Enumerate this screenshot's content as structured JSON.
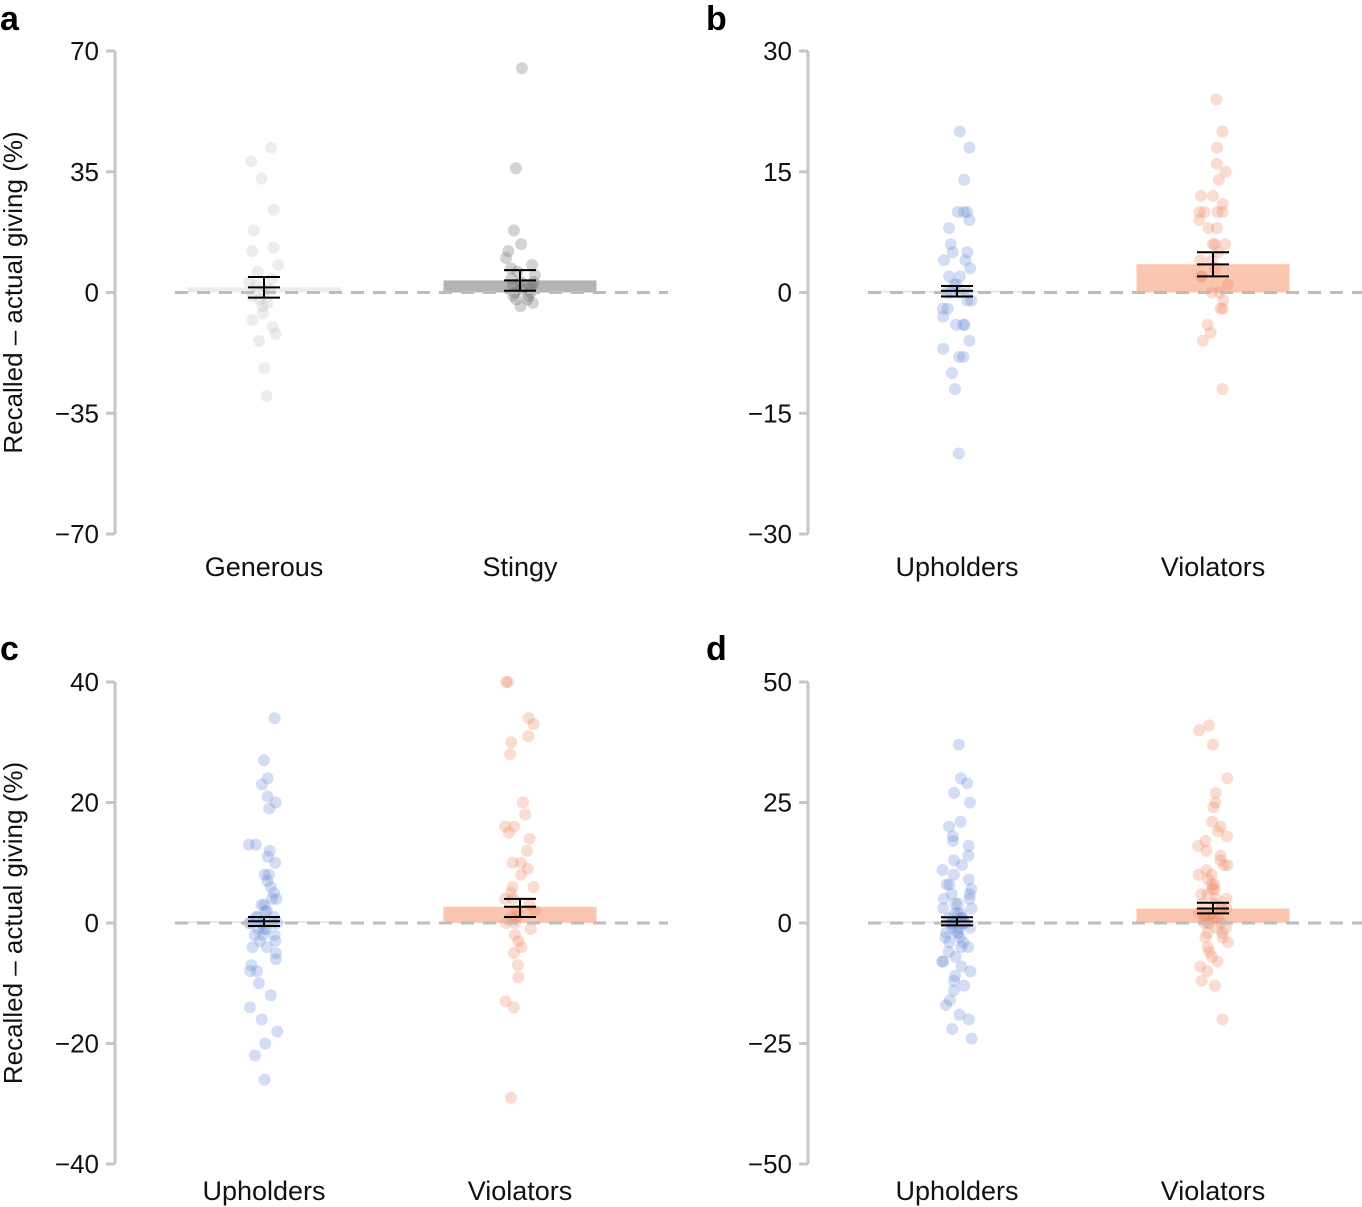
{
  "chart_data": [
    {
      "panel": "a",
      "type": "bar",
      "ylabel": "Recalled – actual giving (%)",
      "ylim": [
        -70,
        70
      ],
      "yticks": [
        70,
        35,
        0,
        -35,
        -70
      ],
      "ytick_labels": [
        "70",
        "35",
        "0",
        "−35",
        "−70"
      ],
      "categories": [
        "Generous",
        "Stingy"
      ],
      "bar_colors": [
        "#ededed",
        "#b4b4b4"
      ],
      "dot_colors": [
        "#c4c4c4",
        "#6e6e6e"
      ],
      "bars": [
        {
          "category": "Generous",
          "mean": 1.5,
          "se_low": -1.5,
          "se_high": 4.5,
          "points": [
            42,
            38,
            33,
            24,
            18,
            13,
            12,
            8,
            6,
            4,
            3,
            2,
            1,
            0,
            -1,
            -2,
            -3,
            -4,
            -6,
            -8,
            -10,
            -12,
            -14,
            -22,
            -30
          ]
        },
        {
          "category": "Stingy",
          "mean": 3.5,
          "se_low": 0.5,
          "se_high": 6.5,
          "points": [
            65,
            36,
            18,
            14,
            12,
            10,
            8,
            7,
            6,
            5,
            4,
            3,
            3,
            2,
            2,
            1,
            1,
            0,
            0,
            -1,
            -1,
            -2,
            -2,
            -3,
            -4
          ]
        }
      ]
    },
    {
      "panel": "b",
      "type": "bar",
      "ylabel": "",
      "ylim": [
        -30,
        30
      ],
      "yticks": [
        30,
        15,
        0,
        -15,
        -30
      ],
      "ytick_labels": [
        "30",
        "15",
        "0",
        "−15",
        "−30"
      ],
      "categories": [
        "Upholders",
        "Violators"
      ],
      "bar_colors": [
        "#dde6f8",
        "#fbc6b0"
      ],
      "dot_colors": [
        "#6d8fd6",
        "#ef8a66"
      ],
      "bars": [
        {
          "category": "Upholders",
          "mean": 0.2,
          "se_low": -0.5,
          "se_high": 0.8,
          "points": [
            20,
            18,
            14,
            10,
            10,
            10,
            9,
            8,
            6,
            5,
            5,
            4,
            4,
            3,
            2,
            2,
            1,
            1,
            0,
            0,
            0,
            0,
            -1,
            -1,
            -2,
            -2,
            -3,
            -4,
            -4,
            -4,
            -6,
            -7,
            -8,
            -8,
            -10,
            -12,
            -20
          ]
        },
        {
          "category": "Violators",
          "mean": 3.5,
          "se_low": 2,
          "se_high": 5,
          "points": [
            24,
            20,
            18,
            16,
            15,
            14,
            12,
            12,
            11,
            10,
            10,
            10,
            10,
            9,
            8,
            8,
            6,
            6,
            6,
            5,
            4,
            4,
            3,
            2,
            2,
            1,
            0,
            0,
            -1,
            -2,
            -2,
            -4,
            -5,
            -6,
            -12
          ]
        }
      ]
    },
    {
      "panel": "c",
      "type": "bar",
      "ylabel": "Recalled – actual giving (%)",
      "ylim": [
        -40,
        40
      ],
      "yticks": [
        40,
        20,
        0,
        -20,
        -40
      ],
      "ytick_labels": [
        "40",
        "20",
        "0",
        "−20",
        "−40"
      ],
      "categories": [
        "Upholders",
        "Violators"
      ],
      "bar_colors": [
        "#dde6f8",
        "#fbc6b0"
      ],
      "dot_colors": [
        "#6d8fd6",
        "#ef8a66"
      ],
      "bars": [
        {
          "category": "Upholders",
          "mean": 0.3,
          "se_low": -0.5,
          "se_high": 1.0,
          "points": [
            34,
            27,
            24,
            23,
            21,
            20,
            19,
            13,
            13,
            12,
            11,
            10,
            8,
            8,
            7,
            6,
            5,
            4,
            4,
            3,
            3,
            2,
            2,
            1,
            1,
            1,
            0,
            0,
            0,
            0,
            0,
            0,
            -1,
            -1,
            -1,
            -2,
            -2,
            -2,
            -3,
            -3,
            -4,
            -4,
            -5,
            -6,
            -7,
            -8,
            -8,
            -10,
            -12,
            -14,
            -16,
            -18,
            -20,
            -22,
            -26
          ]
        },
        {
          "category": "Violators",
          "mean": 2.7,
          "se_low": 1.0,
          "se_high": 4.0,
          "points": [
            40,
            40,
            34,
            33,
            31,
            30,
            28,
            20,
            18,
            16,
            16,
            15,
            14,
            12,
            10,
            10,
            9,
            8,
            6,
            6,
            5,
            4,
            4,
            3,
            2,
            2,
            1,
            1,
            0,
            0,
            -1,
            -2,
            -3,
            -4,
            -5,
            -7,
            -9,
            -13,
            -14,
            -29
          ]
        }
      ]
    },
    {
      "panel": "d",
      "type": "bar",
      "ylabel": "",
      "ylim": [
        -50,
        50
      ],
      "yticks": [
        50,
        25,
        0,
        -25,
        -50
      ],
      "ytick_labels": [
        "50",
        "25",
        "0",
        "−25",
        "−50"
      ],
      "categories": [
        "Upholders",
        "Violators"
      ],
      "bar_colors": [
        "#dde6f8",
        "#fbc6b0"
      ],
      "dot_colors": [
        "#6d8fd6",
        "#ef8a66"
      ],
      "bars": [
        {
          "category": "Upholders",
          "mean": 0.3,
          "se_low": -0.5,
          "se_high": 1.2,
          "points": [
            37,
            30,
            29,
            27,
            25,
            21,
            20,
            18,
            17,
            16,
            14,
            13,
            12,
            11,
            10,
            9,
            8,
            8,
            7,
            6,
            6,
            5,
            5,
            4,
            4,
            3,
            3,
            2,
            2,
            2,
            1,
            1,
            1,
            0,
            0,
            0,
            0,
            0,
            0,
            -1,
            -1,
            -1,
            -2,
            -2,
            -2,
            -3,
            -3,
            -4,
            -4,
            -5,
            -5,
            -6,
            -7,
            -8,
            -8,
            -9,
            -10,
            -11,
            -12,
            -13,
            -14,
            -16,
            -17,
            -19,
            -20,
            -22,
            -24
          ]
        },
        {
          "category": "Violators",
          "mean": 3.0,
          "se_low": 2.0,
          "se_high": 4.2,
          "points": [
            41,
            40,
            37,
            30,
            27,
            25,
            24,
            21,
            20,
            19,
            18,
            17,
            16,
            15,
            14,
            13,
            12,
            12,
            11,
            10,
            10,
            9,
            8,
            8,
            7,
            7,
            6,
            6,
            5,
            5,
            4,
            4,
            3,
            3,
            3,
            2,
            2,
            2,
            1,
            1,
            1,
            0,
            0,
            0,
            0,
            -1,
            -1,
            -2,
            -2,
            -3,
            -3,
            -4,
            -5,
            -6,
            -7,
            -8,
            -9,
            -10,
            -12,
            -13,
            -20
          ]
        }
      ]
    }
  ]
}
